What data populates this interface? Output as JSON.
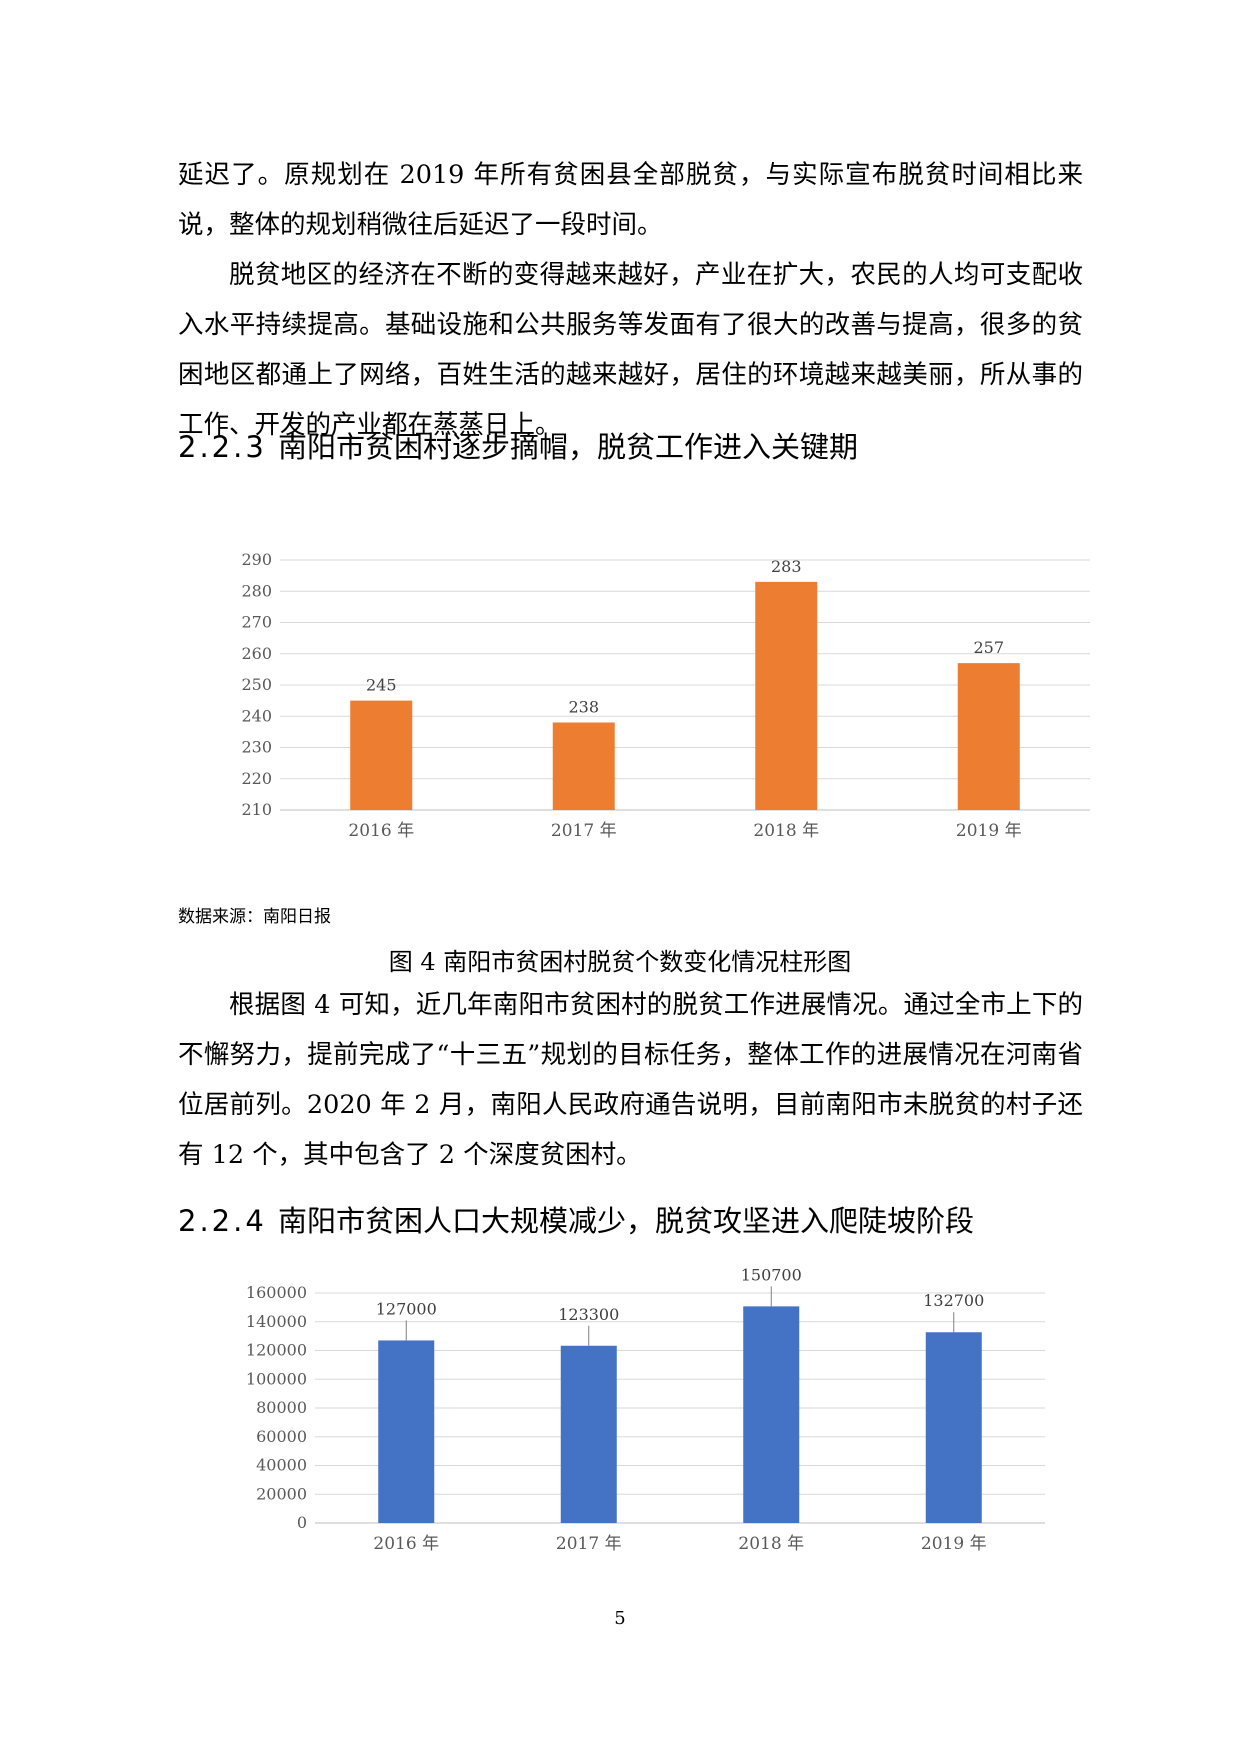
{
  "paragraphs": [
    "延迟了。原规划在 2019 年所有贫困县全部脱贫，与实际宣布脱贫时间相比来说，整体的规划稍微往后延迟了一段时间。",
    "脱贫地区的经济在不断的变得越来越好，产业在扩大，农民的人均可支配收入水平持续提高。基础设施和公共服务等发面有了很大的改善与提高，很多的贫困地区都通上了网络，百姓生活的越来越好，居住的环境越来越美丽，所从事的工作、开发的产业都在蒸蒸日上。",
    "根据图 4 可知，近几年南阳市贫困村的脱贫工作进展情况。通过全市上下的不懈努力，提前完成了“十三五”规划的目标任务，整体工作的进展情况在河南省位居前列。2020 年 2 月，南阳人民政府通告说明，目前南阳市未脱贫的村子还有 12 个，其中包含了 2 个深度贫困村。"
  ],
  "sections": [
    {
      "number": "2.2.3",
      "title": "南阳市贫困村逐步摘帽，脱贫工作进入关键期"
    },
    {
      "number": "2.2.4",
      "title": "南阳市贫困人口大规模减少，脱贫攻坚进入爬陡坡阶段"
    }
  ],
  "figure_source": "数据来源：南阳日报",
  "figure_caption": "图 4 南阳市贫困村脱贫个数变化情况柱形图",
  "page_number": "5",
  "chart_data": [
    {
      "type": "bar",
      "categories": [
        "2016 年",
        "2017 年",
        "2018 年",
        "2019 年"
      ],
      "values": [
        245,
        238,
        283,
        257
      ],
      "data_labels": [
        "245",
        "238",
        "283",
        "257"
      ],
      "ylim": [
        210,
        290
      ],
      "yticks": [
        "210",
        "220",
        "230",
        "240",
        "250",
        "260",
        "270",
        "280",
        "290"
      ],
      "grid": true,
      "color": "#ED7D31",
      "title": "",
      "xlabel": "",
      "ylabel": ""
    },
    {
      "type": "bar",
      "categories": [
        "2016 年",
        "2017 年",
        "2018 年",
        "2019 年"
      ],
      "values": [
        127000,
        123300,
        150700,
        132700
      ],
      "data_labels": [
        "127000",
        "123300",
        "150700",
        "132700"
      ],
      "ylim": [
        0,
        160000
      ],
      "yticks": [
        "0",
        "20000",
        "40000",
        "60000",
        "80000",
        "100000",
        "120000",
        "140000",
        "160000"
      ],
      "grid": true,
      "color": "#4472C4",
      "title": "",
      "xlabel": "",
      "ylabel": ""
    }
  ]
}
